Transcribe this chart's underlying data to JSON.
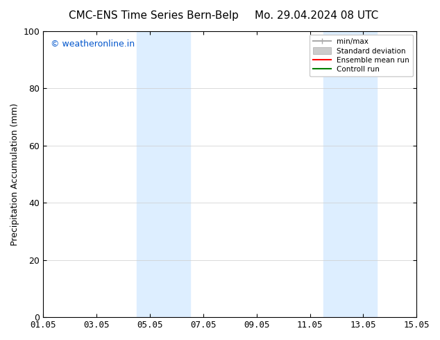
{
  "title_left": "CMC-ENS Time Series Bern-Belp",
  "title_right": "Mo. 29.04.2024 08 UTC",
  "ylabel": "Precipitation Accumulation (mm)",
  "xlim": [
    0,
    14
  ],
  "ylim": [
    0,
    100
  ],
  "yticks": [
    0,
    20,
    40,
    60,
    80,
    100
  ],
  "xtick_positions": [
    0,
    2,
    4,
    6,
    8,
    10,
    12,
    14
  ],
  "xtick_labels": [
    "01.05",
    "03.05",
    "05.05",
    "07.05",
    "09.05",
    "11.05",
    "13.05",
    "15.05"
  ],
  "shaded_regions": [
    {
      "x_start": 3.5,
      "x_end": 5.5,
      "color": "#ddeeff"
    },
    {
      "x_start": 10.5,
      "x_end": 12.5,
      "color": "#ddeeff"
    }
  ],
  "watermark_text": "© weatheronline.in",
  "watermark_color": "#0055cc",
  "legend_entries": [
    {
      "label": "min/max",
      "color": "#aaaaaa",
      "linewidth": 1.5,
      "linestyle": "-"
    },
    {
      "label": "Standard deviation",
      "color": "#cccccc",
      "linewidth": 6,
      "linestyle": "-"
    },
    {
      "label": "Ensemble mean run",
      "color": "red",
      "linewidth": 1.5,
      "linestyle": "-"
    },
    {
      "label": "Controll run",
      "color": "green",
      "linewidth": 1.5,
      "linestyle": "-"
    }
  ],
  "bg_color": "#ffffff",
  "plot_bg_color": "#ffffff",
  "grid_color": "#cccccc",
  "title_fontsize": 11,
  "tick_fontsize": 9,
  "label_fontsize": 9
}
